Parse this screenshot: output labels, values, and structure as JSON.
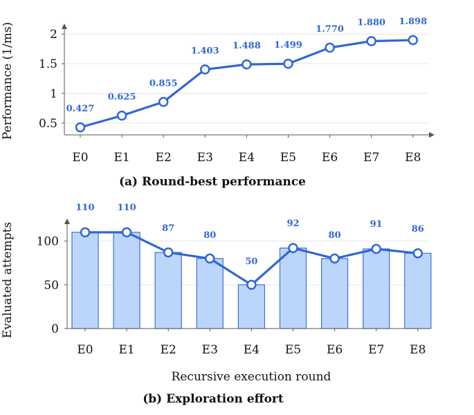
{
  "colors": {
    "line": "#2f66d6",
    "bar_fill": "#bcd6fb",
    "bar_stroke": "#3a6fd8",
    "marker_fill": "#ffffff"
  },
  "chart_data": [
    {
      "type": "line",
      "caption": "(a) Round-best performance",
      "ylabel": "Performance (1/ms)",
      "categories": [
        "E0",
        "E1",
        "E2",
        "E3",
        "E4",
        "E5",
        "E6",
        "E7",
        "E8"
      ],
      "values": [
        0.427,
        0.625,
        0.855,
        1.403,
        1.488,
        1.499,
        1.77,
        1.88,
        1.898
      ],
      "data_labels": [
        "0.427",
        "0.625",
        "0.855",
        "1.403",
        "1.488",
        "1.499",
        "1.770",
        "1.880",
        "1.898"
      ],
      "yticks": [
        "0.5",
        "1",
        "1.5",
        "2"
      ],
      "ytick_values": [
        0.5,
        1,
        1.5,
        2
      ],
      "ylim": [
        0.3,
        2.05
      ],
      "grid": true
    },
    {
      "type": "bar",
      "caption": "(b) Exploration effort",
      "ylabel": "Evaluated attempts",
      "xlabel": "Recursive execution round",
      "categories": [
        "E0",
        "E1",
        "E2",
        "E3",
        "E4",
        "E5",
        "E6",
        "E7",
        "E8"
      ],
      "values": [
        110,
        110,
        87,
        80,
        50,
        92,
        80,
        91,
        86
      ],
      "data_labels": [
        "110",
        "110",
        "87",
        "80",
        "50",
        "92",
        "80",
        "91",
        "86"
      ],
      "yticks": [
        "0",
        "50",
        "100"
      ],
      "ytick_values": [
        0,
        50,
        100
      ],
      "ylim": [
        0,
        125
      ],
      "overlay_line": true,
      "grid": true
    }
  ]
}
